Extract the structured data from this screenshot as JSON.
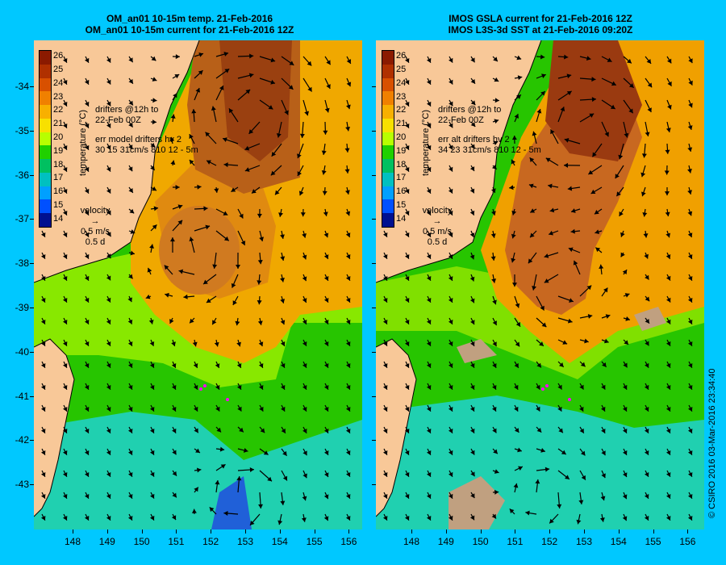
{
  "left_panel": {
    "title_line1": "OM_an01 10-15m temp. 21-Feb-2016",
    "title_line2": "OM_an01 10-15m current for 21-Feb-2016 12Z",
    "drifters_line1": "drifters @12h to",
    "drifters_line2": "22-Feb 00Z",
    "err_line1": "err model drifters hv 2",
    "err_line2": "30 15 31cm/s 810 12 - 5m"
  },
  "right_panel": {
    "title_line1": "IMOS GSLA current for 21-Feb-2016 12Z",
    "title_line2": "IMOS L3S-3d SST at 21-Feb-2016 09:20Z",
    "drifters_line1": "drifters @12h to",
    "drifters_line2": "22-Feb 00Z",
    "err_line1": "err alt drifters hv 2",
    "err_line2": "34 23 31cm/s 810 12 - 5m"
  },
  "velocity_legend": {
    "label": "velocity",
    "speed": "0.5 m/s",
    "time": "0.5 d"
  },
  "colorbar": {
    "title": "temperature (°C)",
    "levels": [
      "26",
      "25",
      "24",
      "23",
      "22",
      "21",
      "20",
      "19",
      "18",
      "17",
      "16",
      "15",
      "14"
    ],
    "colors": [
      "#8b1a00",
      "#b03000",
      "#d85000",
      "#f08000",
      "#f8b000",
      "#f8e000",
      "#b8ff00",
      "#20d000",
      "#00c060",
      "#00c0c0",
      "#00a0ff",
      "#0050ff",
      "#001090"
    ]
  },
  "axes": {
    "lat_labels": [
      "-34",
      "-35",
      "-36",
      "-37",
      "-38",
      "-39",
      "-40",
      "-41",
      "-42",
      "-43"
    ],
    "lon_labels": [
      "148",
      "149",
      "150",
      "151",
      "152",
      "153",
      "154",
      "155",
      "156"
    ]
  },
  "credit": "© CSIRO 2016   03-Mar-2016 23:34:40",
  "map_colors": {
    "land": "#f8c898",
    "background": "#00c8ff"
  }
}
